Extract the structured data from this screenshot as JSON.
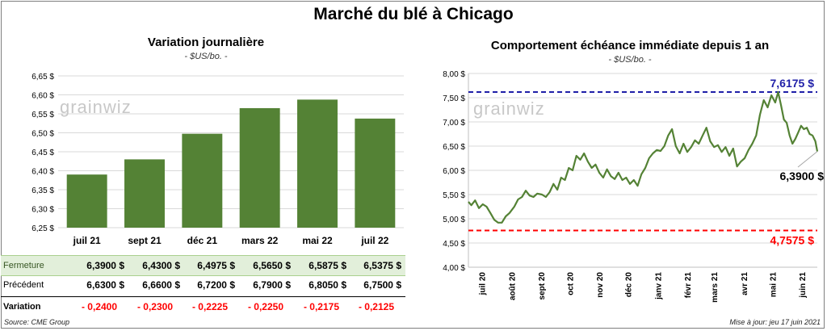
{
  "title": "Marché du blé à Chicago",
  "source": "Source: CME Group",
  "updated": "Mise à jour: jeu 17 juin 2021",
  "watermark": "grainwiz",
  "colors": {
    "bar": "#548235",
    "line": "#548235",
    "max_line": "#1f1fa8",
    "min_line": "#ff0000",
    "neg": "#ff0000",
    "fermeture_bg": "#e2efda"
  },
  "left_chart": {
    "title": "Variation  journalière",
    "subtitle": "- $US/bo. -",
    "chart_data": {
      "type": "bar",
      "categories": [
        "juil 21",
        "sept 21",
        "déc 21",
        "mars 22",
        "mai 22",
        "juil 22"
      ],
      "values": [
        6.39,
        6.43,
        6.4975,
        6.565,
        6.5875,
        6.5375
      ],
      "ylim": [
        6.25,
        6.65
      ],
      "yticks": [
        "6,25 $",
        "6,30 $",
        "6,35 $",
        "6,40 $",
        "6,45 $",
        "6,50 $",
        "6,55 $",
        "6,60 $",
        "6,65 $"
      ],
      "grid": true
    }
  },
  "table": {
    "rows": [
      {
        "label": "Fermeture",
        "values": [
          "6,3900  $",
          "6,4300  $",
          "6,4975  $",
          "6,5650  $",
          "6,5875  $",
          "6,5375  $"
        ]
      },
      {
        "label": "Précédent",
        "values": [
          "6,6300  $",
          "6,6600  $",
          "6,7200  $",
          "6,7900  $",
          "6,8050  $",
          "6,7500  $"
        ]
      },
      {
        "label": "Variation",
        "values": [
          "- 0,2400",
          "- 0,2300",
          "- 0,2225",
          "- 0,2250",
          "- 0,2175",
          "- 0,2125"
        ]
      }
    ]
  },
  "right_chart": {
    "title": "Comportement  échéance immédiate depuis 1 an",
    "subtitle": "- $US/bo. -",
    "chart_data": {
      "type": "line",
      "ylim": [
        4.0,
        8.0
      ],
      "yticks": [
        "4,00 $",
        "4,50 $",
        "5,00 $",
        "5,50 $",
        "6,00 $",
        "6,50 $",
        "7,00 $",
        "7,50 $",
        "8,00 $"
      ],
      "xticks": [
        "juil 20",
        "août 20",
        "sept 20",
        "oct 20",
        "nov 20",
        "déc 20",
        "janv 21",
        "févr 21",
        "mars 21",
        "avr 21",
        "mai 21",
        "juin 21"
      ],
      "x_range": [
        "2020-06-17",
        "2021-06-17"
      ],
      "series": [
        {
          "values": [
            [
              "2020-06-17",
              5.35
            ],
            [
              "2020-06-20",
              5.28
            ],
            [
              "2020-06-24",
              5.38
            ],
            [
              "2020-06-28",
              5.22
            ],
            [
              "2020-07-02",
              5.3
            ],
            [
              "2020-07-06",
              5.25
            ],
            [
              "2020-07-10",
              5.12
            ],
            [
              "2020-07-14",
              4.98
            ],
            [
              "2020-07-18",
              4.92
            ],
            [
              "2020-07-22",
              4.92
            ],
            [
              "2020-07-26",
              5.05
            ],
            [
              "2020-07-30",
              5.12
            ],
            [
              "2020-08-04",
              5.25
            ],
            [
              "2020-08-08",
              5.4
            ],
            [
              "2020-08-12",
              5.45
            ],
            [
              "2020-08-16",
              5.58
            ],
            [
              "2020-08-20",
              5.48
            ],
            [
              "2020-08-24",
              5.45
            ],
            [
              "2020-08-28",
              5.52
            ],
            [
              "2020-09-02",
              5.5
            ],
            [
              "2020-09-06",
              5.45
            ],
            [
              "2020-09-10",
              5.55
            ],
            [
              "2020-09-14",
              5.72
            ],
            [
              "2020-09-18",
              5.6
            ],
            [
              "2020-09-22",
              5.85
            ],
            [
              "2020-09-26",
              5.8
            ],
            [
              "2020-09-30",
              6.05
            ],
            [
              "2020-10-04",
              6.0
            ],
            [
              "2020-10-08",
              6.3
            ],
            [
              "2020-10-12",
              6.22
            ],
            [
              "2020-10-16",
              6.35
            ],
            [
              "2020-10-20",
              6.18
            ],
            [
              "2020-10-24",
              6.05
            ],
            [
              "2020-10-28",
              6.12
            ],
            [
              "2020-11-01",
              5.95
            ],
            [
              "2020-11-05",
              5.85
            ],
            [
              "2020-11-09",
              6.02
            ],
            [
              "2020-11-13",
              5.88
            ],
            [
              "2020-11-17",
              5.82
            ],
            [
              "2020-11-21",
              5.95
            ],
            [
              "2020-11-25",
              5.8
            ],
            [
              "2020-11-29",
              5.85
            ],
            [
              "2020-12-03",
              5.72
            ],
            [
              "2020-12-07",
              5.8
            ],
            [
              "2020-12-11",
              5.68
            ],
            [
              "2020-12-15",
              5.92
            ],
            [
              "2020-12-19",
              6.05
            ],
            [
              "2020-12-23",
              6.25
            ],
            [
              "2020-12-27",
              6.35
            ],
            [
              "2020-12-31",
              6.42
            ],
            [
              "2021-01-04",
              6.4
            ],
            [
              "2021-01-08",
              6.5
            ],
            [
              "2021-01-12",
              6.72
            ],
            [
              "2021-01-16",
              6.85
            ],
            [
              "2021-01-20",
              6.5
            ],
            [
              "2021-01-24",
              6.35
            ],
            [
              "2021-01-28",
              6.55
            ],
            [
              "2021-02-01",
              6.38
            ],
            [
              "2021-02-05",
              6.48
            ],
            [
              "2021-02-09",
              6.62
            ],
            [
              "2021-02-13",
              6.55
            ],
            [
              "2021-02-17",
              6.72
            ],
            [
              "2021-02-21",
              6.88
            ],
            [
              "2021-02-25",
              6.6
            ],
            [
              "2021-03-01",
              6.48
            ],
            [
              "2021-03-05",
              6.52
            ],
            [
              "2021-03-09",
              6.38
            ],
            [
              "2021-03-13",
              6.48
            ],
            [
              "2021-03-17",
              6.3
            ],
            [
              "2021-03-21",
              6.45
            ],
            [
              "2021-03-25",
              6.08
            ],
            [
              "2021-03-29",
              6.18
            ],
            [
              "2021-04-02",
              6.25
            ],
            [
              "2021-04-06",
              6.42
            ],
            [
              "2021-04-10",
              6.55
            ],
            [
              "2021-04-14",
              6.72
            ],
            [
              "2021-04-18",
              7.15
            ],
            [
              "2021-04-22",
              7.45
            ],
            [
              "2021-04-26",
              7.3
            ],
            [
              "2021-04-30",
              7.55
            ],
            [
              "2021-05-04",
              7.4
            ],
            [
              "2021-05-07",
              7.6175
            ],
            [
              "2021-05-10",
              7.35
            ],
            [
              "2021-05-13",
              7.05
            ],
            [
              "2021-05-16",
              6.98
            ],
            [
              "2021-05-19",
              6.72
            ],
            [
              "2021-05-22",
              6.55
            ],
            [
              "2021-05-25",
              6.65
            ],
            [
              "2021-05-28",
              6.78
            ],
            [
              "2021-05-31",
              6.92
            ],
            [
              "2021-06-03",
              6.85
            ],
            [
              "2021-06-06",
              6.88
            ],
            [
              "2021-06-09",
              6.75
            ],
            [
              "2021-06-12",
              6.72
            ],
            [
              "2021-06-15",
              6.6
            ],
            [
              "2021-06-17",
              6.39
            ]
          ]
        }
      ],
      "max_value": 7.6175,
      "min_value": 4.7575,
      "annotations": {
        "max_label": "7,6175  $",
        "min_label": "4,7575  $",
        "last_label": "6,3900 $"
      },
      "grid": true
    }
  }
}
